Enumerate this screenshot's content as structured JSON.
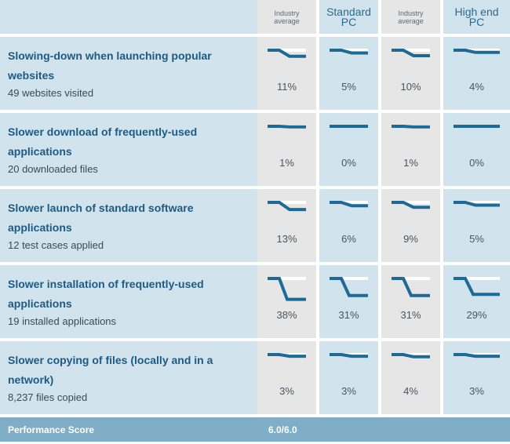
{
  "columns": [
    {
      "label": "Industry average",
      "kind": "ia"
    },
    {
      "label": "Standard PC",
      "kind": "pc"
    },
    {
      "label": "Industry average",
      "kind": "ia"
    },
    {
      "label": "High end PC",
      "kind": "pc"
    }
  ],
  "rows": [
    {
      "title": "Slowing-down when launching popular websites",
      "subtitle": "49 websites visited",
      "values": [
        "11%",
        "5%",
        "10%",
        "4%"
      ]
    },
    {
      "title": "Slower download of frequently-used applications",
      "subtitle": "20 downloaded files",
      "values": [
        "1%",
        "0%",
        "1%",
        "0%"
      ]
    },
    {
      "title": "Slower launch of standard software applications",
      "subtitle": "12 test cases applied",
      "values": [
        "13%",
        "6%",
        "9%",
        "5%"
      ]
    },
    {
      "title": "Slower installation of frequently-used applications",
      "subtitle": "19 installed applications",
      "values": [
        "38%",
        "31%",
        "31%",
        "29%"
      ]
    },
    {
      "title": "Slower copying of files (locally and in a network)",
      "subtitle": "8,237 files copied",
      "values": [
        "3%",
        "3%",
        "4%",
        "3%"
      ]
    }
  ],
  "footer": {
    "label": "Performance Score",
    "score": "6.0/6.0"
  },
  "colors": {
    "line": "#1d6a96",
    "baseline": "#ffffff"
  },
  "chart_data": {
    "type": "table",
    "categories": [
      "Slowing-down when launching popular websites",
      "Slower download of frequently-used applications",
      "Slower launch of standard software applications",
      "Slower installation of frequently-used applications",
      "Slower copying of files (locally and in a network)"
    ],
    "series": [
      {
        "name": "Industry average",
        "values": [
          11,
          1,
          13,
          38,
          3
        ]
      },
      {
        "name": "Standard PC",
        "values": [
          5,
          0,
          6,
          31,
          3
        ]
      },
      {
        "name": "Industry average",
        "values": [
          10,
          1,
          9,
          31,
          4
        ]
      },
      {
        "name": "High end PC",
        "values": [
          4,
          0,
          5,
          29,
          3
        ]
      }
    ],
    "unit": "%"
  }
}
